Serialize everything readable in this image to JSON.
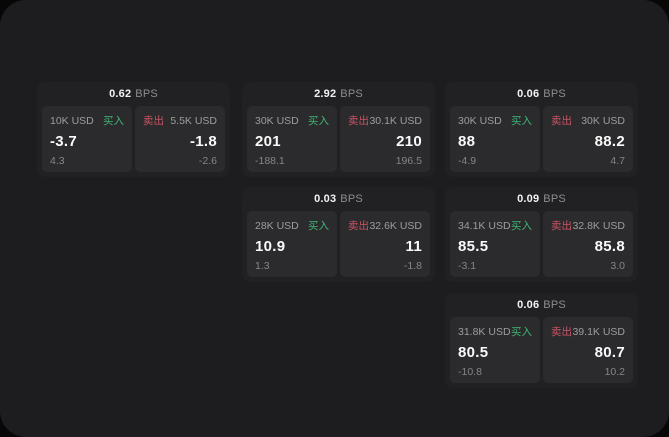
{
  "labels": {
    "bps_unit": "BPS",
    "buy": "买入",
    "sell": "卖出"
  },
  "colors": {
    "panel": "#1d1d1f",
    "card": "#212123",
    "pane": "#2b2b2d",
    "buy": "#3fb574",
    "sell": "#c95364"
  },
  "cards": [
    {
      "bps": "0.62",
      "buy": {
        "size": "10K USD",
        "value": "-3.7",
        "delta": "4.3"
      },
      "sell": {
        "size": "5.5K USD",
        "value": "-1.8",
        "delta": "-2.6"
      }
    },
    {
      "bps": "2.92",
      "buy": {
        "size": "30K USD",
        "value": "201",
        "delta": "-188.1"
      },
      "sell": {
        "size": "30.1K USD",
        "value": "210",
        "delta": "196.5"
      }
    },
    {
      "bps": "0.06",
      "buy": {
        "size": "30K USD",
        "value": "88",
        "delta": "-4.9"
      },
      "sell": {
        "size": "30K USD",
        "value": "88.2",
        "delta": "4.7"
      }
    },
    {
      "bps": "0.03",
      "buy": {
        "size": "28K USD",
        "value": "10.9",
        "delta": "1.3"
      },
      "sell": {
        "size": "32.6K USD",
        "value": "11",
        "delta": "-1.8"
      }
    },
    {
      "bps": "0.09",
      "buy": {
        "size": "34.1K USD",
        "value": "85.5",
        "delta": "-3.1"
      },
      "sell": {
        "size": "32.8K USD",
        "value": "85.8",
        "delta": "3.0"
      }
    },
    {
      "bps": "0.06",
      "buy": {
        "size": "31.8K USD",
        "value": "80.5",
        "delta": "-10.8"
      },
      "sell": {
        "size": "39.1K USD",
        "value": "80.7",
        "delta": "10.2"
      }
    }
  ]
}
